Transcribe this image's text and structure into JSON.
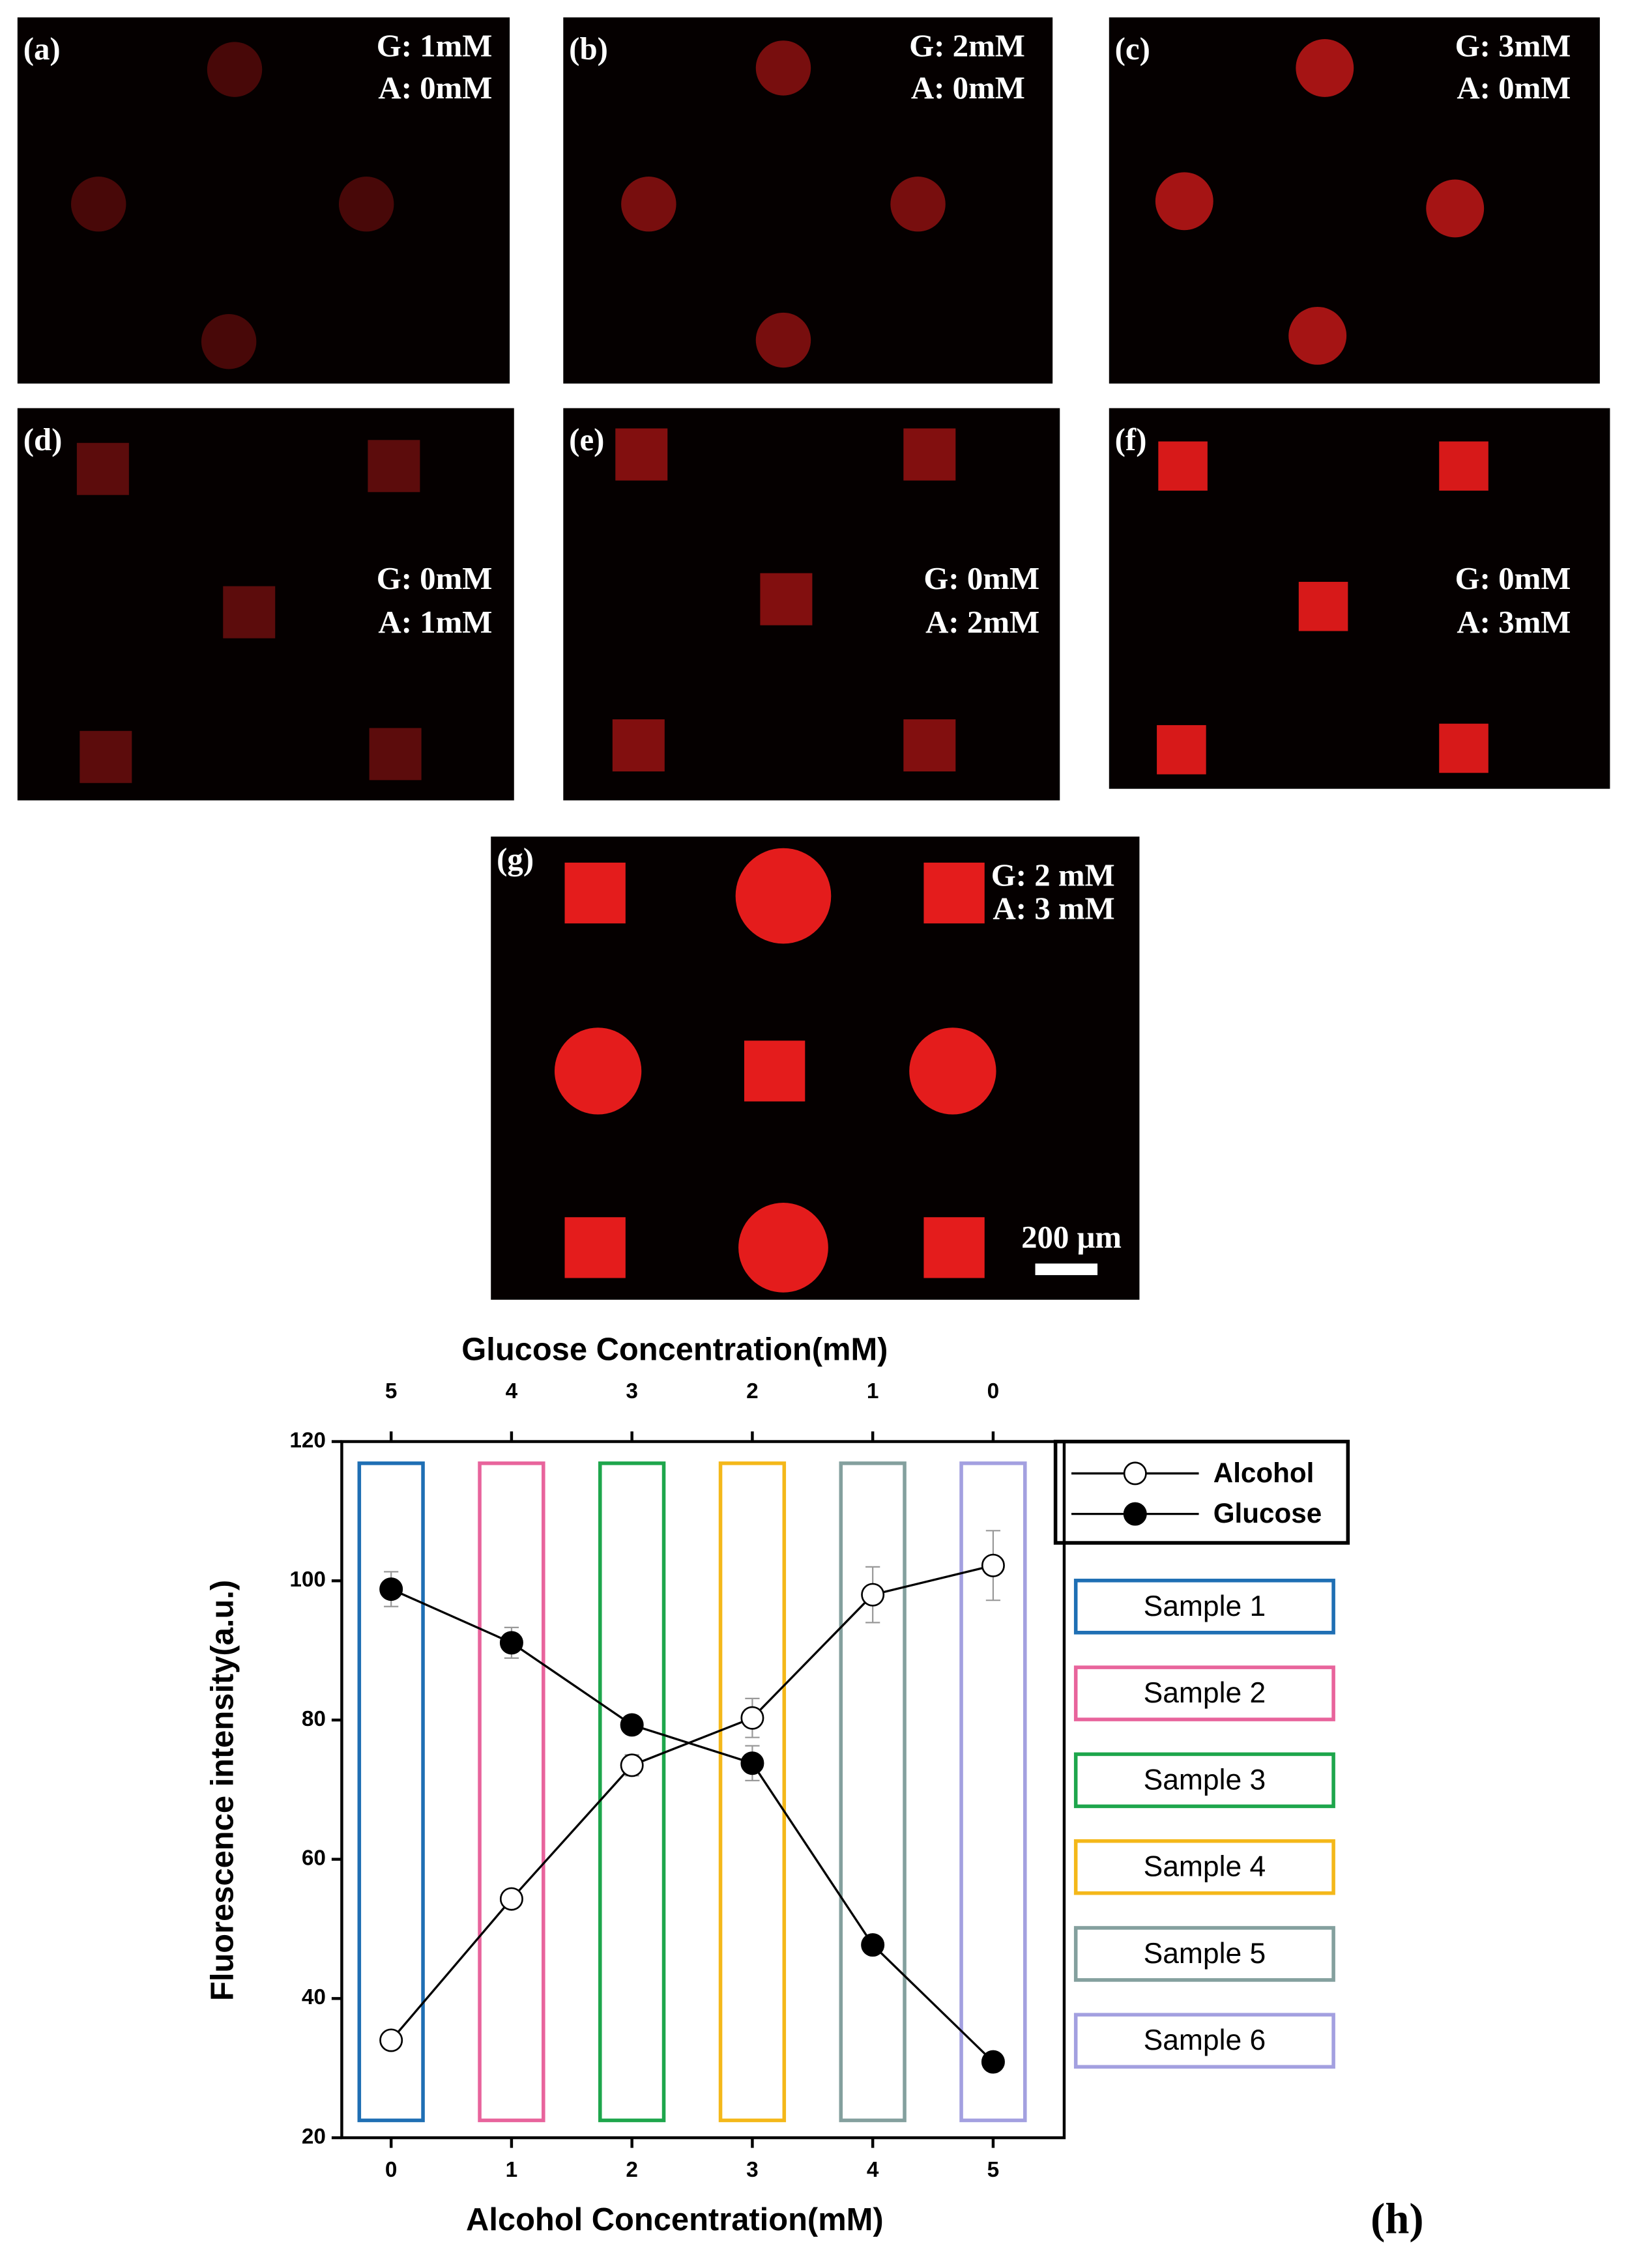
{
  "panels": [
    {
      "label": "(a)",
      "lines": [
        "G: 1mM",
        "A: 0mM"
      ]
    },
    {
      "label": "(b)",
      "lines": [
        "G: 2mM",
        "A: 0mM"
      ]
    },
    {
      "label": "(c)",
      "lines": [
        "G: 3mM",
        "A: 0mM"
      ]
    },
    {
      "label": "(d)",
      "lines": [
        "G: 0mM",
        "A: 1mM"
      ]
    },
    {
      "label": "(e)",
      "lines": [
        "G: 0mM",
        "A: 2mM"
      ]
    },
    {
      "label": "(f)",
      "lines": [
        "G: 0mM",
        "A: 3mM"
      ]
    },
    {
      "label": "(g)",
      "lines": [
        "G: 2 mM",
        "A: 3 mM"
      ],
      "scale_bar": "200 μm"
    }
  ],
  "chart_data": {
    "type": "line",
    "panel_label": "(h)",
    "x_label": "Alcohol Concentration(mM)",
    "x2_label": "Glucose Concentration(mM)",
    "y_label": "Fluorescence intensity(a.u.)",
    "x": [
      0,
      1,
      2,
      3,
      4,
      5
    ],
    "xlim": [
      -0.41,
      5.59
    ],
    "xticks": [
      0,
      1,
      2,
      3,
      4,
      5
    ],
    "x2lim": [
      5.41,
      -0.59
    ],
    "x2ticks": [
      5,
      4,
      3,
      2,
      1,
      0
    ],
    "ylim": [
      20,
      120
    ],
    "yticks": [
      20,
      40,
      60,
      80,
      100,
      120
    ],
    "series": [
      {
        "name": "Alcohol",
        "color": "#000000",
        "marker": "open",
        "values": [
          34,
          54.3,
          73.5,
          80.3,
          98,
          102.2
        ],
        "errors": [
          0.5,
          0.5,
          1.5,
          2.8,
          4,
          5
        ]
      },
      {
        "name": "Glucose",
        "color": "#000000",
        "marker": "filled",
        "values": [
          98.8,
          91.1,
          79.3,
          73.8,
          47.7,
          30.9
        ],
        "errors": [
          2.5,
          2.2,
          0.8,
          2.5,
          0.5,
          0.5
        ]
      }
    ],
    "samples": [
      {
        "name": "Sample 1",
        "color": "#1f6fb4"
      },
      {
        "name": "Sample 2",
        "color": "#e8649c"
      },
      {
        "name": "Sample 3",
        "color": "#1ea64c"
      },
      {
        "name": "Sample 4",
        "color": "#f4b81a"
      },
      {
        "name": "Sample 5",
        "color": "#84a09e"
      },
      {
        "name": "Sample 6",
        "color": "#a3a0e0"
      }
    ]
  }
}
